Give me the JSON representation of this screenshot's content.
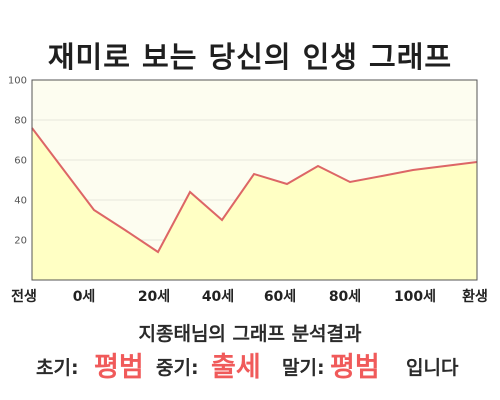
{
  "title": "재미로 보는 당신의 인생 그래프",
  "subtitle": "지종태님의 그래프 분석결과",
  "result": {
    "early_label": "초기:",
    "early_value": "평범",
    "mid_label": "중기:",
    "mid_value": "출세",
    "late_label": "말기:",
    "late_value": "평범",
    "ending": "입니다"
  },
  "colors": {
    "line": "#dd6666",
    "fill": "#ffffc4",
    "plot_background": "#fdfdf0",
    "grid": "#e6e6dc",
    "highlight_text": "#f05a5a"
  },
  "chart_data": {
    "type": "area",
    "title": "재미로 보는 당신의 인생 그래프",
    "xlabel": "",
    "ylabel": "",
    "ylim": [
      0,
      100
    ],
    "y_ticks": [
      "20",
      "40",
      "60",
      "80",
      "100"
    ],
    "x_tick_labels": [
      "전생",
      "0세",
      "20세",
      "40세",
      "60세",
      "80세",
      "100세",
      "환생"
    ],
    "grid": true,
    "x": [
      "전생",
      "0세",
      "",
      "20세",
      "",
      "",
      "40세",
      "",
      "60세",
      "",
      "80세",
      "",
      "100세",
      "환생"
    ],
    "values": [
      76,
      35,
      25,
      14,
      44,
      30,
      53,
      48,
      57,
      49,
      52,
      55,
      57,
      59
    ]
  }
}
